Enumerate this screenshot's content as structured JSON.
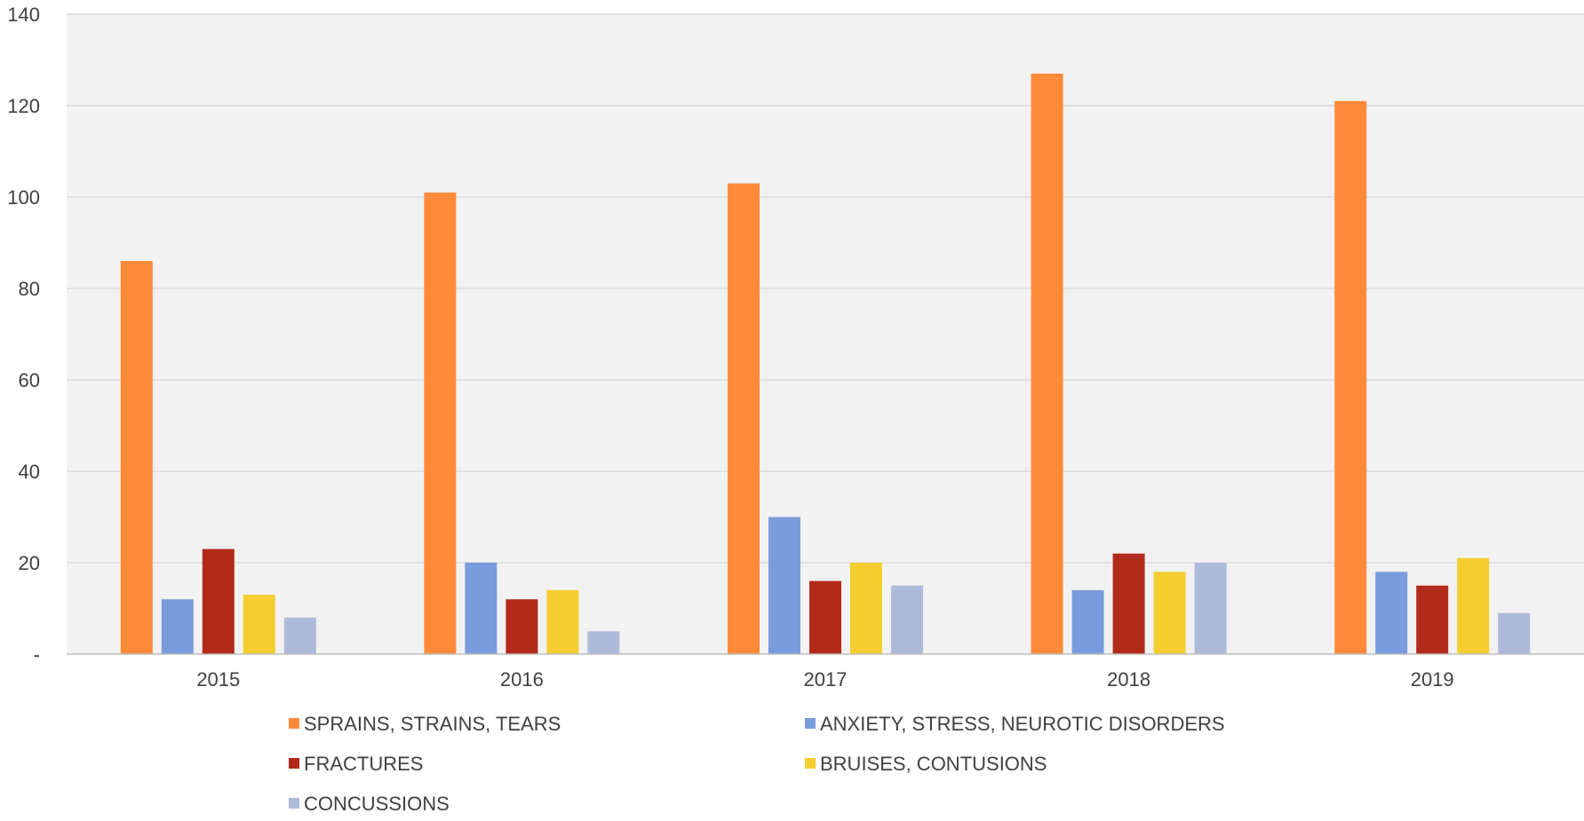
{
  "chart_data": {
    "type": "bar",
    "title": "",
    "xlabel": "",
    "ylabel": "",
    "categories": [
      "2015",
      "2016",
      "2017",
      "2018",
      "2019"
    ],
    "ylim": [
      0,
      140
    ],
    "y_ticks": [
      0,
      20,
      40,
      60,
      80,
      100,
      120,
      140
    ],
    "y_tick_labels": [
      "-",
      "20",
      "40",
      "60",
      "80",
      "100",
      "120",
      "140"
    ],
    "grid": true,
    "legend_position": "bottom",
    "series": [
      {
        "name": "SPRAINS, STRAINS, TEARS",
        "color": "#FF8A3A",
        "values": [
          86,
          101,
          103,
          127,
          121
        ]
      },
      {
        "name": "ANXIETY, STRESS, NEUROTIC DISORDERS",
        "color": "#7A9BDC",
        "values": [
          12,
          20,
          30,
          14,
          18
        ]
      },
      {
        "name": "FRACTURES",
        "color": "#B22A19",
        "values": [
          23,
          12,
          16,
          22,
          15
        ]
      },
      {
        "name": "BRUISES, CONTUSIONS",
        "color": "#F4CE2E",
        "values": [
          13,
          14,
          20,
          18,
          21
        ]
      },
      {
        "name": "CONCUSSIONS",
        "color": "#AEBAD9",
        "values": [
          8,
          5,
          15,
          20,
          9
        ]
      }
    ],
    "colors": {
      "plot_background": "#F2F2F2",
      "gridline": "#D9D9D9",
      "axis_line": "#BFBFBF"
    }
  }
}
